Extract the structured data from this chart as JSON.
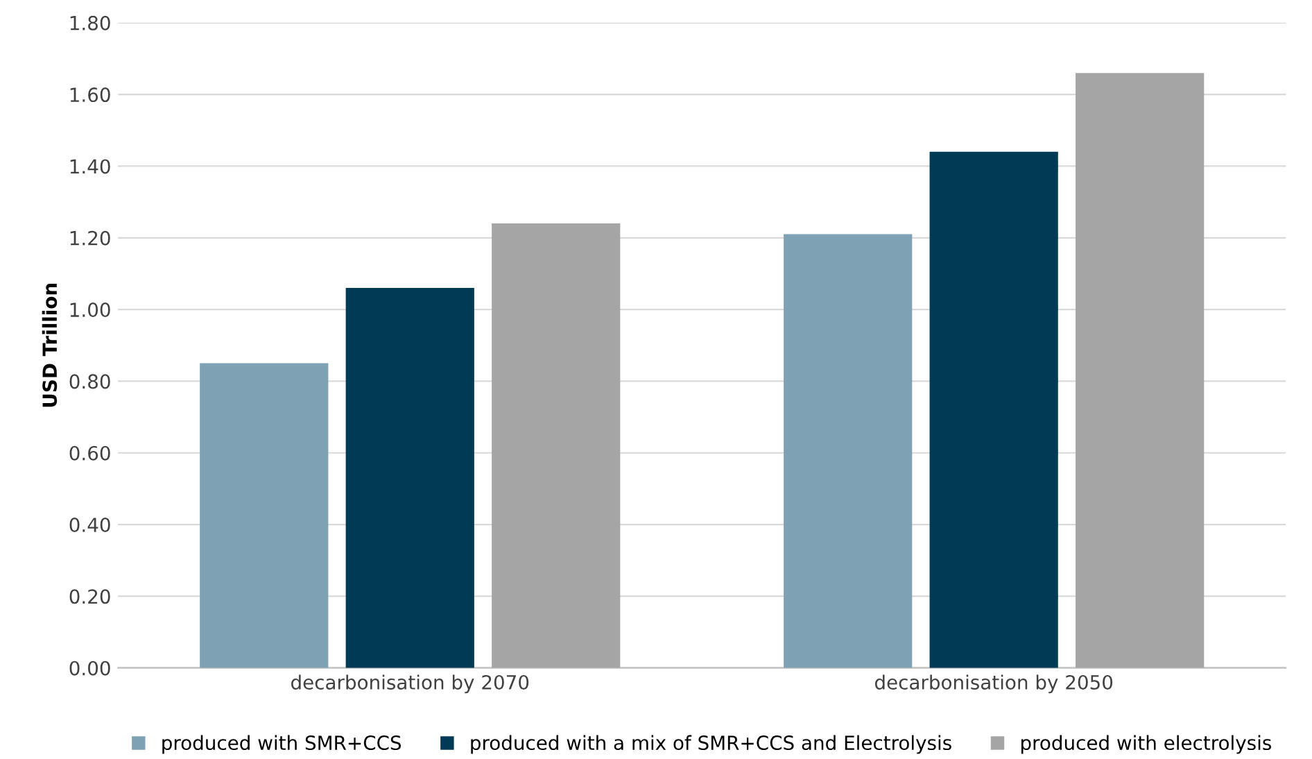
{
  "chart_data": {
    "type": "bar",
    "ylabel": "USD Trillion",
    "categories": [
      "decarbonisation by 2070",
      "decarbonisation by 2050"
    ],
    "series": [
      {
        "name": "produced with SMR+CCS",
        "color": "#7fa1b4",
        "values": [
          0.85,
          1.21
        ]
      },
      {
        "name": "produced with a mix of SMR+CCS and Electrolysis",
        "color": "#003a54",
        "values": [
          1.06,
          1.44
        ]
      },
      {
        "name": "produced with electrolysis",
        "color": "#a5a5a5",
        "values": [
          1.24,
          1.66
        ]
      }
    ],
    "ylim": [
      0,
      1.8
    ],
    "yticks": [
      {
        "value": 0,
        "label": "0.00"
      },
      {
        "value": 0.2,
        "label": "0.20"
      },
      {
        "value": 0.4,
        "label": "0.40"
      },
      {
        "value": 0.6,
        "label": "0.60"
      },
      {
        "value": 0.8,
        "label": "0.80"
      },
      {
        "value": 1.0,
        "label": "1.00"
      },
      {
        "value": 1.2,
        "label": "1.20"
      },
      {
        "value": 1.4,
        "label": "1.40"
      },
      {
        "value": 1.6,
        "label": "1.60"
      },
      {
        "value": 1.8,
        "label": "1.80"
      }
    ],
    "grid": "y",
    "legend": "bottom"
  }
}
